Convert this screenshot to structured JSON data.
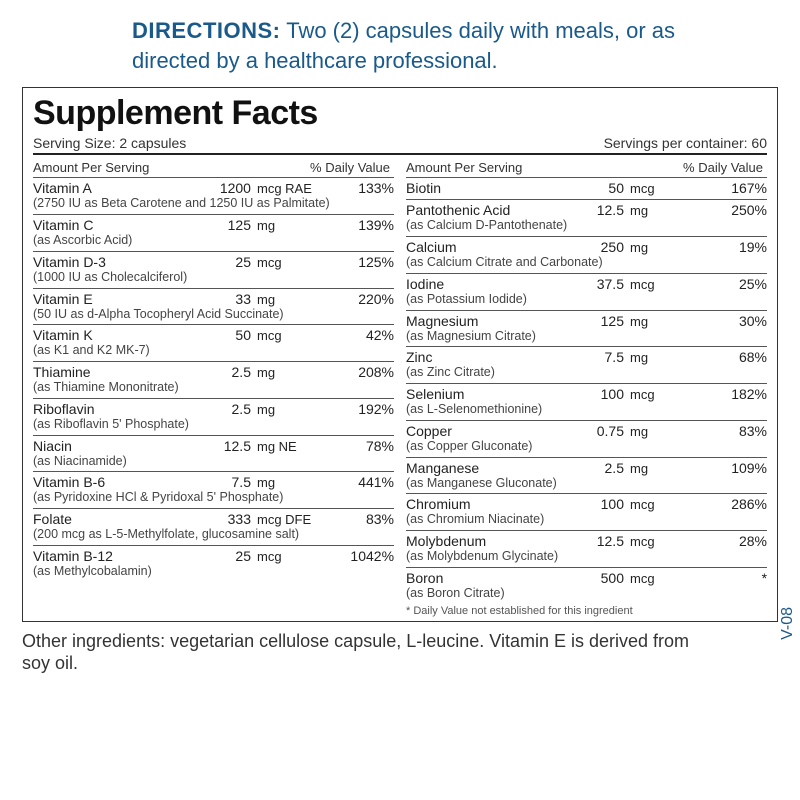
{
  "directions": {
    "label": "DIRECTIONS:",
    "text": "Two (2) capsules daily with meals, or as directed by a healthcare professional."
  },
  "facts": {
    "title": "Supplement Facts",
    "serving_size": "Serving Size: 2 capsules",
    "servings_per": "Servings per container: 60",
    "column_header_amount": "Amount Per Serving",
    "column_header_dv": "% Daily Value",
    "left": [
      {
        "name": "Vitamin A",
        "amount": "1200",
        "unit": "mcg RAE",
        "dv": "133%",
        "note": "(2750 IU as Beta Carotene and 1250 IU as Palmitate)"
      },
      {
        "name": "Vitamin C",
        "amount": "125",
        "unit": "mg",
        "dv": "139%",
        "note": "(as Ascorbic Acid)"
      },
      {
        "name": "Vitamin D-3",
        "amount": "25",
        "unit": "mcg",
        "dv": "125%",
        "note": "(1000 IU as Cholecalciferol)"
      },
      {
        "name": "Vitamin E",
        "amount": "33",
        "unit": "mg",
        "dv": "220%",
        "note": "(50 IU as d-Alpha Tocopheryl Acid Succinate)"
      },
      {
        "name": "Vitamin K",
        "amount": "50",
        "unit": "mcg",
        "dv": "42%",
        "note": "(as K1 and K2 MK-7)"
      },
      {
        "name": "Thiamine",
        "amount": "2.5",
        "unit": "mg",
        "dv": "208%",
        "note": "(as Thiamine Mononitrate)"
      },
      {
        "name": "Riboflavin",
        "amount": "2.5",
        "unit": "mg",
        "dv": "192%",
        "note": "(as Riboflavin 5' Phosphate)"
      },
      {
        "name": "Niacin",
        "amount": "12.5",
        "unit": "mg NE",
        "dv": "78%",
        "note": "(as Niacinamide)"
      },
      {
        "name": "Vitamin B-6",
        "amount": "7.5",
        "unit": "mg",
        "dv": "441%",
        "note": "(as Pyridoxine HCl & Pyridoxal 5' Phosphate)"
      },
      {
        "name": "Folate",
        "amount": "333",
        "unit": "mcg DFE",
        "dv": "83%",
        "note": "(200 mcg as L-5-Methylfolate, glucosamine salt)"
      },
      {
        "name": "Vitamin B-12",
        "amount": "25",
        "unit": "mcg",
        "dv": "1042%",
        "note": "(as Methylcobalamin)"
      }
    ],
    "right": [
      {
        "name": "Biotin",
        "amount": "50",
        "unit": "mcg",
        "dv": "167%",
        "note": ""
      },
      {
        "name": "Pantothenic Acid",
        "amount": "12.5",
        "unit": "mg",
        "dv": "250%",
        "note": "(as Calcium D-Pantothenate)"
      },
      {
        "name": "Calcium",
        "amount": "250",
        "unit": "mg",
        "dv": "19%",
        "note": "(as Calcium Citrate and Carbonate)"
      },
      {
        "name": "Iodine",
        "amount": "37.5",
        "unit": "mcg",
        "dv": "25%",
        "note": "(as Potassium Iodide)"
      },
      {
        "name": "Magnesium",
        "amount": "125",
        "unit": "mg",
        "dv": "30%",
        "note": "(as Magnesium Citrate)"
      },
      {
        "name": "Zinc",
        "amount": "7.5",
        "unit": "mg",
        "dv": "68%",
        "note": "(as Zinc Citrate)"
      },
      {
        "name": "Selenium",
        "amount": "100",
        "unit": "mcg",
        "dv": "182%",
        "note": "(as L-Selenomethionine)"
      },
      {
        "name": "Copper",
        "amount": "0.75",
        "unit": "mg",
        "dv": "83%",
        "note": "(as Copper Gluconate)"
      },
      {
        "name": "Manganese",
        "amount": "2.5",
        "unit": "mg",
        "dv": "109%",
        "note": "(as Manganese Gluconate)"
      },
      {
        "name": "Chromium",
        "amount": "100",
        "unit": "mcg",
        "dv": "286%",
        "note": "(as Chromium Niacinate)"
      },
      {
        "name": "Molybdenum",
        "amount": "12.5",
        "unit": "mcg",
        "dv": "28%",
        "note": "(as Molybdenum Glycinate)"
      },
      {
        "name": "Boron",
        "amount": "500",
        "unit": "mcg",
        "dv": "*",
        "note": "(as Boron Citrate)"
      }
    ],
    "dv_footnote": "* Daily Value not established for this ingredient"
  },
  "vcode": "V-08",
  "other": "Other ingredients: vegetarian cellulose capsule, L-leucine. Vitamin E is derived from soy oil."
}
